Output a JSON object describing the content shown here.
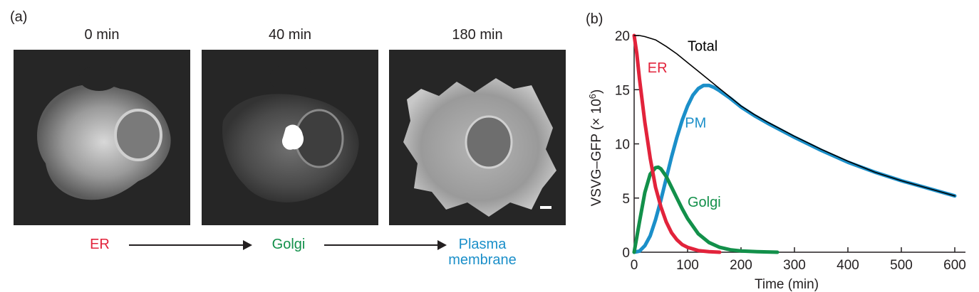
{
  "panel_a": {
    "label": "(a)",
    "images": [
      {
        "time": "0 min"
      },
      {
        "time": "40 min"
      },
      {
        "time": "180 min"
      }
    ],
    "stages": [
      {
        "lines": [
          "ER"
        ],
        "color": "#e2233b"
      },
      {
        "lines": [
          "Golgi"
        ],
        "color": "#12904a"
      },
      {
        "lines": [
          "Plasma",
          "membrane"
        ],
        "color": "#1b8fc9"
      }
    ]
  },
  "chart_data": {
    "label": "(b)",
    "type": "line",
    "xlabel": "Time (min)",
    "ylabel": "VSVG–GFP (× 10",
    "ylabel_sup": "6",
    "ylabel_close": ")",
    "xlim": [
      0,
      620
    ],
    "ylim": [
      0,
      20
    ],
    "xticks": [
      0,
      100,
      200,
      300,
      400,
      500,
      600
    ],
    "yticks": [
      0,
      5,
      10,
      15,
      20
    ],
    "grid": false,
    "series": [
      {
        "name": "Total",
        "color": "#000000",
        "x": [
          0,
          10,
          20,
          40,
          60,
          80,
          100,
          120,
          140,
          160,
          180,
          200,
          225,
          250,
          300,
          350,
          400,
          450,
          500,
          550,
          600
        ],
        "y": [
          20,
          20,
          19.9,
          19.6,
          19.0,
          18.3,
          17.5,
          16.7,
          15.9,
          15.1,
          14.3,
          13.5,
          12.7,
          12.0,
          10.7,
          9.5,
          8.4,
          7.4,
          6.6,
          5.9,
          5.2
        ]
      },
      {
        "name": "ER",
        "color": "#e2233b",
        "x": [
          0,
          5,
          10,
          20,
          30,
          40,
          50,
          60,
          70,
          80,
          90,
          100,
          120,
          140,
          160
        ],
        "y": [
          20,
          18.3,
          16.0,
          12.0,
          8.7,
          6.0,
          4.2,
          2.8,
          1.8,
          1.15,
          0.7,
          0.45,
          0.15,
          0.05,
          0.0
        ]
      },
      {
        "name": "Golgi",
        "color": "#12904a",
        "x": [
          0,
          10,
          20,
          30,
          40,
          45,
          50,
          60,
          70,
          80,
          90,
          100,
          120,
          140,
          160,
          180,
          200,
          230,
          268
        ],
        "y": [
          0,
          2.8,
          5.5,
          7.2,
          7.8,
          7.85,
          7.7,
          7.0,
          6.0,
          5.0,
          4.0,
          3.1,
          1.7,
          0.9,
          0.45,
          0.22,
          0.12,
          0.05,
          0.0
        ]
      },
      {
        "name": "PM",
        "color": "#1b8fc9",
        "x": [
          0,
          10,
          20,
          30,
          40,
          50,
          60,
          70,
          80,
          90,
          100,
          110,
          120,
          130,
          140,
          150,
          160,
          180,
          200,
          225,
          250,
          300,
          350,
          400,
          450,
          500,
          550,
          600
        ],
        "y": [
          0,
          0.1,
          0.6,
          1.5,
          3.0,
          4.8,
          6.8,
          8.8,
          10.6,
          12.2,
          13.5,
          14.5,
          15.1,
          15.4,
          15.4,
          15.2,
          14.9,
          14.2,
          13.4,
          12.6,
          11.9,
          10.6,
          9.4,
          8.3,
          7.4,
          6.6,
          5.9,
          5.2
        ]
      }
    ],
    "annotations": [
      {
        "text": "Total",
        "x": 100,
        "y": 18.6,
        "color": "#000000"
      },
      {
        "text": "ER",
        "x": 25,
        "y": 16.6,
        "color": "#e2233b"
      },
      {
        "text": "PM",
        "x": 95,
        "y": 11.5,
        "color": "#1b8fc9"
      },
      {
        "text": "Golgi",
        "x": 100,
        "y": 4.2,
        "color": "#12904a"
      }
    ]
  }
}
